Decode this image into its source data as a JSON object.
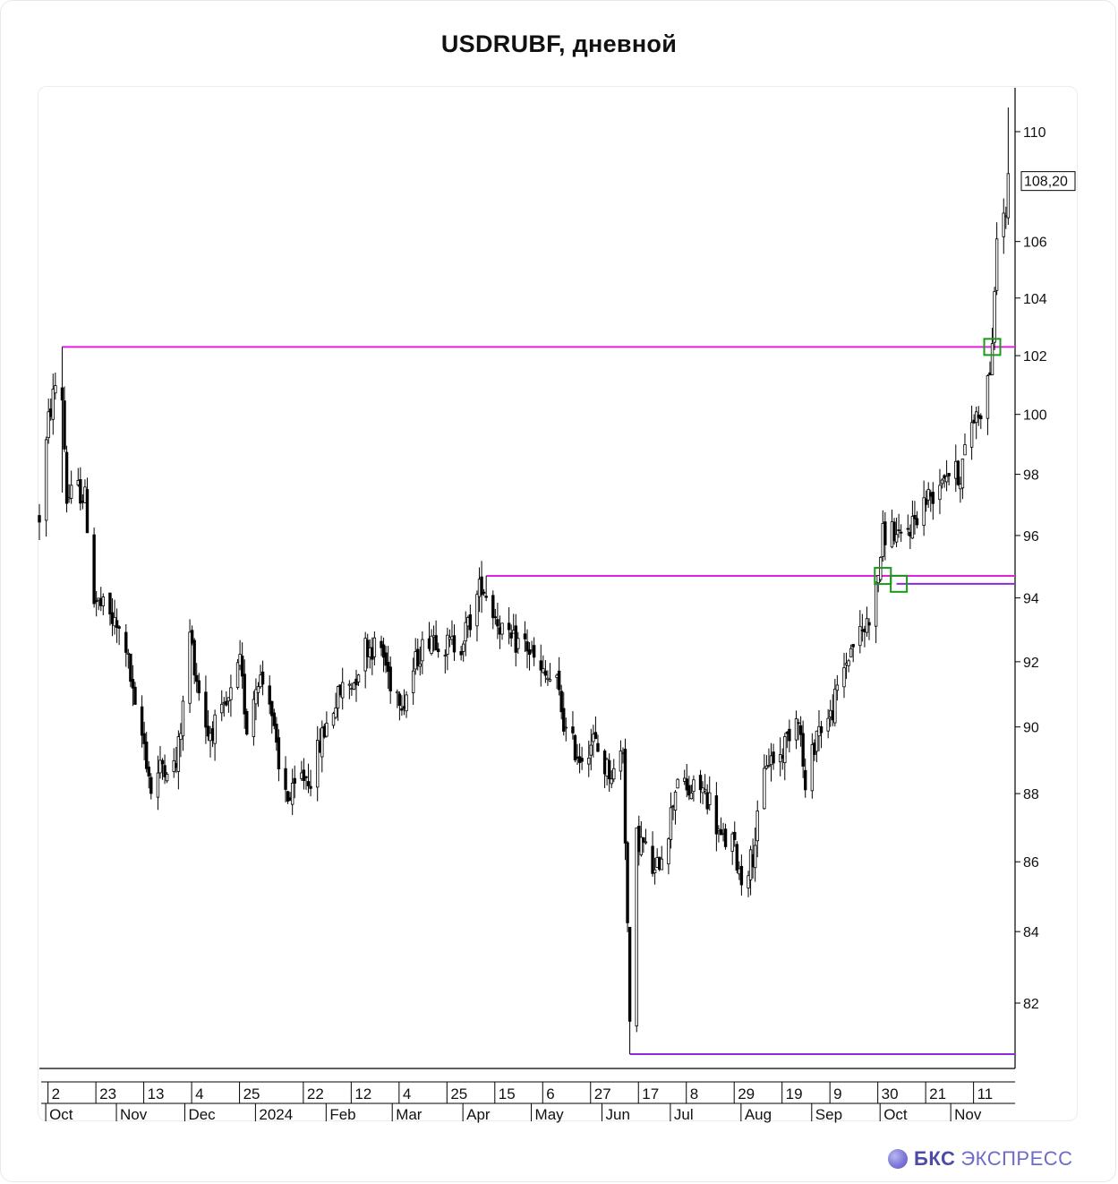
{
  "title": "USDRUBF, дневной",
  "brand": {
    "name_bold": "БКС",
    "name_light": "ЭКСПРЕСС",
    "logo_icon": "bks-sphere-logo-icon"
  },
  "colors": {
    "magenta_level": "#e020e0",
    "violet_level": "#8a2be2",
    "signal_box": "#1a9a1a",
    "candle": "#000000"
  },
  "chart_data": {
    "type": "candlestick",
    "symbol": "USDRUBF",
    "timeframe": "дневной",
    "last_price_label": "108,20",
    "last_price": 108.2,
    "y_ticks": [
      {
        "value": 82,
        "label": "82"
      },
      {
        "value": 84,
        "label": "84"
      },
      {
        "value": 86,
        "label": "86"
      },
      {
        "value": 88,
        "label": "88"
      },
      {
        "value": 90,
        "label": "90"
      },
      {
        "value": 92,
        "label": "92"
      },
      {
        "value": 94,
        "label": "94"
      },
      {
        "value": 96,
        "label": "96"
      },
      {
        "value": 98,
        "label": "98"
      },
      {
        "value": 100,
        "label": "100"
      },
      {
        "value": 102,
        "label": "102"
      },
      {
        "value": 104,
        "label": "104"
      },
      {
        "value": 106,
        "label": "106"
      },
      {
        "value": 110,
        "label": "110"
      }
    ],
    "x_day_ticks": [
      {
        "date": "2023-10-02",
        "label": "2"
      },
      {
        "date": "2023-10-23",
        "label": "23"
      },
      {
        "date": "2023-11-13",
        "label": "13"
      },
      {
        "date": "2023-12-04",
        "label": "4"
      },
      {
        "date": "2023-12-25",
        "label": "25"
      },
      {
        "date": "2024-01-22",
        "label": "22"
      },
      {
        "date": "2024-02-12",
        "label": "12"
      },
      {
        "date": "2024-03-04",
        "label": "4"
      },
      {
        "date": "2024-03-25",
        "label": "25"
      },
      {
        "date": "2024-04-15",
        "label": "15"
      },
      {
        "date": "2024-05-06",
        "label": "6"
      },
      {
        "date": "2024-05-27",
        "label": "27"
      },
      {
        "date": "2024-06-17",
        "label": "17"
      },
      {
        "date": "2024-07-08",
        "label": "8"
      },
      {
        "date": "2024-07-29",
        "label": "29"
      },
      {
        "date": "2024-08-19",
        "label": "19"
      },
      {
        "date": "2024-09-09",
        "label": "9"
      },
      {
        "date": "2024-09-30",
        "label": "30"
      },
      {
        "date": "2024-10-21",
        "label": "21"
      },
      {
        "date": "2024-11-11",
        "label": "11"
      }
    ],
    "x_month_ticks": [
      {
        "date": "2023-10-01",
        "label": "Oct"
      },
      {
        "date": "2023-11-01",
        "label": "Nov"
      },
      {
        "date": "2023-12-01",
        "label": "Dec"
      },
      {
        "date": "2024-01-01",
        "label": "2024"
      },
      {
        "date": "2024-02-01",
        "label": "Feb"
      },
      {
        "date": "2024-03-01",
        "label": "Mar"
      },
      {
        "date": "2024-04-01",
        "label": "Apr"
      },
      {
        "date": "2024-05-01",
        "label": "May"
      },
      {
        "date": "2024-06-01",
        "label": "Jun"
      },
      {
        "date": "2024-07-01",
        "label": "Jul"
      },
      {
        "date": "2024-08-01",
        "label": "Aug"
      },
      {
        "date": "2024-09-01",
        "label": "Sep"
      },
      {
        "date": "2024-10-01",
        "label": "Oct"
      },
      {
        "date": "2024-11-01",
        "label": "Nov"
      }
    ],
    "price_path": [
      [
        "2023-09-29",
        96.6
      ],
      [
        "2023-10-03",
        99.8
      ],
      [
        "2023-10-06",
        101.0
      ],
      [
        "2023-10-09",
        100.6
      ],
      [
        "2023-10-11",
        97.2
      ],
      [
        "2023-10-16",
        97.5
      ],
      [
        "2023-10-19",
        97.2
      ],
      [
        "2023-10-23",
        94.0
      ],
      [
        "2023-10-30",
        93.4
      ],
      [
        "2023-11-06",
        92.5
      ],
      [
        "2023-11-10",
        90.4
      ],
      [
        "2023-11-14",
        89.5
      ],
      [
        "2023-11-17",
        88.1
      ],
      [
        "2023-11-22",
        88.9
      ],
      [
        "2023-11-28",
        88.8
      ],
      [
        "2023-12-01",
        90.6
      ],
      [
        "2023-12-04",
        92.9
      ],
      [
        "2023-12-07",
        91.5
      ],
      [
        "2023-12-12",
        89.8
      ],
      [
        "2023-12-18",
        90.3
      ],
      [
        "2023-12-21",
        90.7
      ],
      [
        "2023-12-26",
        91.9
      ],
      [
        "2023-12-29",
        90.0
      ],
      [
        "2024-01-03",
        91.6
      ],
      [
        "2024-01-08",
        91.0
      ],
      [
        "2024-01-12",
        88.6
      ],
      [
        "2024-01-17",
        87.8
      ],
      [
        "2024-01-22",
        88.5
      ],
      [
        "2024-01-26",
        88.5
      ],
      [
        "2024-01-31",
        89.7
      ],
      [
        "2024-02-05",
        90.6
      ],
      [
        "2024-02-09",
        91.2
      ],
      [
        "2024-02-14",
        91.4
      ],
      [
        "2024-02-19",
        92.5
      ],
      [
        "2024-02-26",
        92.4
      ],
      [
        "2024-03-01",
        91.4
      ],
      [
        "2024-03-07",
        90.8
      ],
      [
        "2024-03-13",
        92.2
      ],
      [
        "2024-03-19",
        92.9
      ],
      [
        "2024-03-25",
        92.5
      ],
      [
        "2024-04-01",
        92.6
      ],
      [
        "2024-04-05",
        93.3
      ],
      [
        "2024-04-10",
        94.5
      ],
      [
        "2024-04-15",
        93.6
      ],
      [
        "2024-04-22",
        92.6
      ],
      [
        "2024-04-29",
        92.6
      ],
      [
        "2024-05-06",
        91.6
      ],
      [
        "2024-05-13",
        91.3
      ],
      [
        "2024-05-17",
        89.8
      ],
      [
        "2024-05-23",
        89.1
      ],
      [
        "2024-05-29",
        89.6
      ],
      [
        "2024-06-03",
        88.8
      ],
      [
        "2024-06-07",
        88.6
      ],
      [
        "2024-06-11",
        89.4
      ],
      [
        "2024-06-13",
        84.2
      ],
      [
        "2024-06-14",
        81.2
      ],
      [
        "2024-06-17",
        86.7
      ],
      [
        "2024-06-20",
        86.5
      ],
      [
        "2024-06-25",
        85.6
      ],
      [
        "2024-07-01",
        87.0
      ],
      [
        "2024-07-05",
        88.6
      ],
      [
        "2024-07-09",
        88.0
      ],
      [
        "2024-07-15",
        88.2
      ],
      [
        "2024-07-19",
        87.8
      ],
      [
        "2024-07-24",
        86.6
      ],
      [
        "2024-07-29",
        86.6
      ],
      [
        "2024-08-02",
        85.5
      ],
      [
        "2024-08-07",
        86.2
      ],
      [
        "2024-08-13",
        89.0
      ],
      [
        "2024-08-19",
        89.1
      ],
      [
        "2024-08-23",
        89.9
      ],
      [
        "2024-08-27",
        90.5
      ],
      [
        "2024-08-30",
        88.0
      ],
      [
        "2024-09-04",
        89.9
      ],
      [
        "2024-09-10",
        90.3
      ],
      [
        "2024-09-16",
        91.8
      ],
      [
        "2024-09-20",
        92.6
      ],
      [
        "2024-09-25",
        93.0
      ],
      [
        "2024-09-30",
        94.2
      ],
      [
        "2024-10-03",
        96.0
      ],
      [
        "2024-10-07",
        96.2
      ],
      [
        "2024-10-10",
        95.8
      ],
      [
        "2024-10-15",
        96.3
      ],
      [
        "2024-10-21",
        97.1
      ],
      [
        "2024-10-25",
        97.4
      ],
      [
        "2024-10-30",
        98.1
      ],
      [
        "2024-11-06",
        98.0
      ],
      [
        "2024-11-11",
        99.8
      ],
      [
        "2024-11-15",
        100.2
      ],
      [
        "2024-11-19",
        101.5
      ],
      [
        "2024-11-21",
        103.8
      ],
      [
        "2024-11-22",
        106.5
      ],
      [
        "2024-11-26",
        107.0
      ],
      [
        "2024-11-27",
        108.2
      ]
    ],
    "extremes": [
      {
        "date": "2023-10-09",
        "low": 97.4,
        "high": 102.3
      },
      {
        "date": "2024-04-12",
        "low": 93.9,
        "high": 94.7
      },
      {
        "date": "2024-06-14",
        "low": 80.6,
        "high": 84.0
      },
      {
        "date": "2024-11-27",
        "low": 106.6,
        "high": 110.9
      }
    ],
    "horizontal_levels": [
      {
        "price": 102.3,
        "from": "2023-10-09",
        "color": "#e020e0"
      },
      {
        "price": 94.7,
        "from": "2024-04-12",
        "color": "#e020e0"
      },
      {
        "price": 94.45,
        "from": "2024-10-09",
        "color": "#8a2be2"
      },
      {
        "price": 80.6,
        "from": "2024-06-14",
        "color": "#8a2be2"
      }
    ],
    "signal_boxes": [
      {
        "date": "2024-10-03",
        "price": 94.7
      },
      {
        "date": "2024-10-10",
        "price": 94.45
      },
      {
        "date": "2024-11-20",
        "price": 102.3
      }
    ]
  }
}
